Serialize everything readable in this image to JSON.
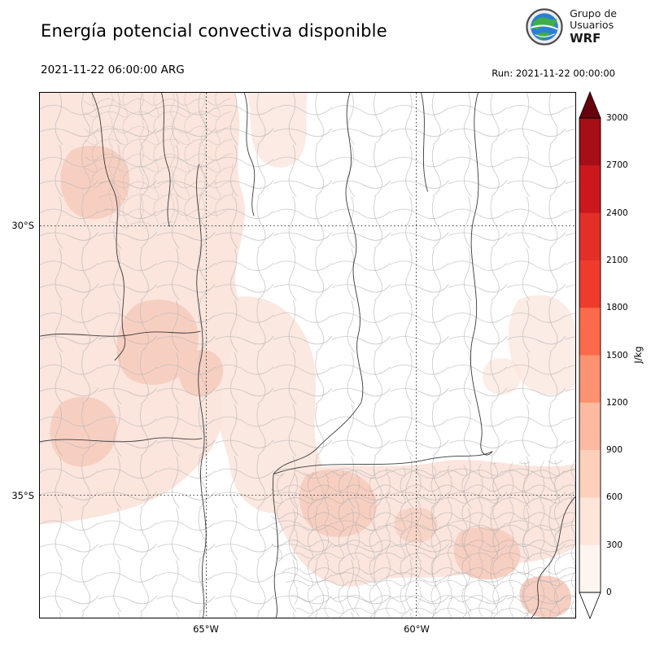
{
  "header": {
    "title": "Energía potencial convectiva disponible",
    "logo": {
      "line1": "Grupo de",
      "line2": "Usuarios",
      "line3": "WRF"
    }
  },
  "subheader": {
    "valid_time": "2021-11-22 06:00:00 ARG",
    "run_label": "Run: 2021-11-22 00:00:00"
  },
  "map": {
    "lat_ticks": [
      "30°S",
      "35°S"
    ],
    "lon_ticks": [
      "65°W",
      "60°W"
    ]
  },
  "colorbar": {
    "unit": "J/kg",
    "ticks": [
      "3000",
      "2700",
      "2400",
      "2100",
      "1800",
      "1500",
      "1200",
      "900",
      "600",
      "300",
      "0"
    ],
    "segment_colors_top_to_bottom": [
      "#a50f15",
      "#cb181d",
      "#e32f27",
      "#ef3b2c",
      "#fb6a4a",
      "#fc9272",
      "#fcbba1",
      "#fdd0bc",
      "#fee5d9",
      "#fff5f0"
    ],
    "over_color": "#67000d",
    "under_color": "#ffffff"
  },
  "chart_data": {
    "type": "heatmap",
    "title": "Energía potencial convectiva disponible",
    "variable": "CAPE (convective available potential energy)",
    "units": "J/kg",
    "valid_time": "2021-11-22 06:00:00 ARG",
    "model_run": "2021-11-22 00:00:00",
    "levels": [
      0,
      300,
      600,
      900,
      1200,
      1500,
      1800,
      2100,
      2400,
      2700,
      3000
    ],
    "colormap": "Reds (white to dark red), arrow extensions above 3000 and below 0",
    "gridlines": {
      "lat": [
        "30°S",
        "35°S"
      ],
      "lon": [
        "65°W",
        "60°W"
      ],
      "style": "dotted"
    },
    "region": "central and northern Argentina with province and department boundaries",
    "observed_field": [
      {
        "area": "northwest (Salta / Tucumán / Catamarca / La Rioja / San Juan)",
        "approx_cape_jkg": "100-400"
      },
      {
        "area": "central-west (San Luis / western Córdoba)",
        "approx_cape_jkg": "100-400"
      },
      {
        "area": "Buenos Aires province band toward the coast",
        "approx_cape_jkg": "100-500"
      },
      {
        "area": "center and northeast (Santiago del Estero / Chaco / northern Santa Fe / Entre Ríos)",
        "approx_cape_jkg": "0-150"
      }
    ]
  }
}
